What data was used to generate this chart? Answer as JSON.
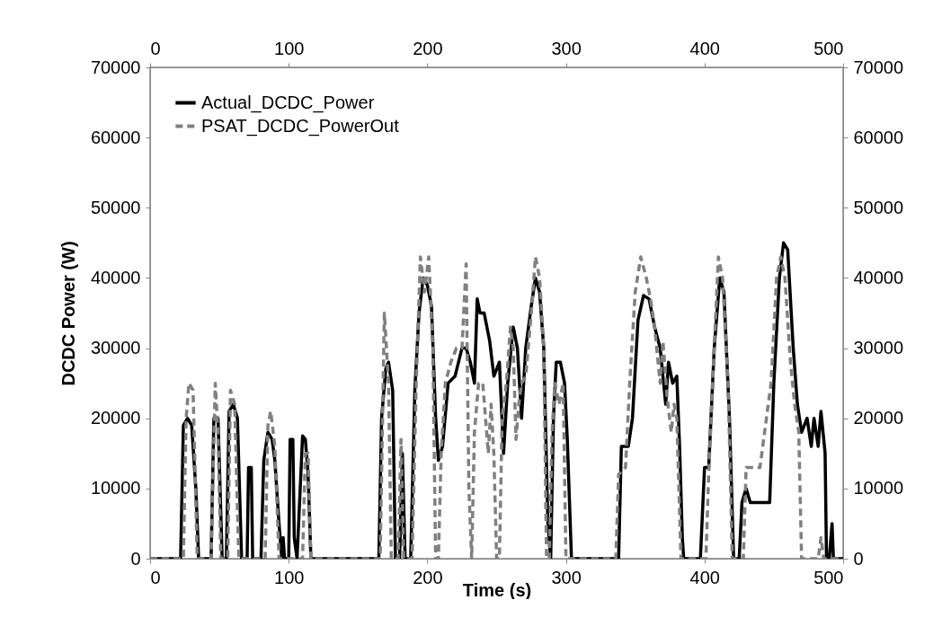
{
  "chart_data": {
    "type": "line",
    "xlabel": "Time (s)",
    "ylabel": "DCDC Power (W)",
    "xlim": [
      0,
      500
    ],
    "xticks": [
      0,
      100,
      200,
      300,
      400,
      500
    ],
    "x2lim": [
      0,
      500
    ],
    "x2ticks": [
      0,
      100,
      200,
      300,
      400,
      500
    ],
    "ylim": [
      0,
      70000
    ],
    "yticks": [
      0,
      10000,
      20000,
      30000,
      40000,
      50000,
      60000,
      70000
    ],
    "y2lim": [
      0,
      70000
    ],
    "y2ticks": [
      0,
      10000,
      20000,
      30000,
      40000,
      50000,
      60000,
      70000
    ],
    "grid": false,
    "legend": "top left",
    "marker": "none",
    "series": [
      {
        "name": "Actual_DCDC_Power",
        "color": "#000000",
        "line_style": "solid",
        "x": [
          0,
          22,
          24,
          27,
          30,
          33,
          35,
          44,
          46,
          49,
          52,
          55,
          57,
          60,
          63,
          66,
          70,
          71,
          73,
          74,
          80,
          82,
          85,
          88,
          90,
          93,
          95,
          96,
          97,
          100,
          101,
          103,
          104,
          106,
          110,
          112,
          114,
          116,
          165,
          167,
          170,
          172,
          175,
          177,
          180,
          182,
          184,
          188,
          191,
          194,
          197,
          200,
          203,
          206,
          208,
          211,
          215,
          220,
          225,
          228,
          231,
          234,
          236,
          238,
          241,
          245,
          248,
          252,
          255,
          258,
          262,
          265,
          268,
          271,
          275,
          278,
          281,
          284,
          287,
          289,
          291,
          293,
          296,
          299,
          301,
          304,
          338,
          340,
          345,
          348,
          352,
          356,
          360,
          364,
          368,
          372,
          374,
          377,
          380,
          382,
          384,
          385,
          397,
          400,
          403,
          407,
          411,
          414,
          418,
          421,
          425,
          427,
          430,
          433,
          440,
          447,
          450,
          454,
          457,
          460,
          464,
          467,
          470,
          474,
          477,
          479,
          482,
          484,
          487,
          488,
          490,
          492,
          493,
          500
        ],
        "values": [
          0,
          0,
          19000,
          20000,
          19000,
          10000,
          0,
          0,
          20000,
          20000,
          0,
          0,
          21000,
          22000,
          20000,
          0,
          0,
          13000,
          13000,
          0,
          0,
          14000,
          18000,
          17000,
          14000,
          5000,
          0,
          3000,
          0,
          0,
          17000,
          17000,
          3000,
          0,
          17500,
          17000,
          12000,
          0,
          0,
          20000,
          27000,
          28000,
          24000,
          0,
          0,
          15000,
          0,
          0,
          24000,
          35000,
          40000,
          39000,
          36000,
          20000,
          14000,
          16000,
          25000,
          26000,
          30000,
          30000,
          28000,
          25000,
          37000,
          35000,
          35000,
          31000,
          26000,
          28000,
          15000,
          25000,
          33000,
          30000,
          20000,
          30000,
          36000,
          40000,
          38000,
          30000,
          5000,
          0,
          20000,
          28000,
          28000,
          25000,
          17000,
          0,
          0,
          16000,
          16000,
          20000,
          34000,
          37500,
          37000,
          33000,
          30000,
          22000,
          28000,
          25000,
          26000,
          16000,
          3000,
          0,
          0,
          13000,
          13000,
          30000,
          40000,
          38000,
          20000,
          0,
          0,
          8000,
          10000,
          8000,
          8000,
          8000,
          25000,
          40000,
          45000,
          44000,
          30000,
          22000,
          18000,
          20000,
          16000,
          20000,
          16000,
          21000,
          15000,
          0,
          0,
          5000,
          0,
          0
        ]
      },
      {
        "name": "PSAT_DCDC_PowerOut",
        "color": "#808080",
        "line_style": "dashed",
        "x": [
          0,
          24,
          26,
          28,
          31,
          34,
          44,
          47,
          49,
          51,
          56,
          58,
          61,
          64,
          83,
          85,
          87,
          90,
          93,
          110,
          112,
          114,
          116,
          166,
          169,
          172,
          174,
          179,
          181,
          183,
          189,
          192,
          195,
          198,
          201,
          204,
          206,
          208,
          210,
          213,
          217,
          221,
          225,
          228,
          230,
          232,
          234,
          237,
          240,
          242,
          244,
          246,
          248,
          250,
          252,
          254,
          257,
          260,
          262,
          264,
          266,
          268,
          271,
          275,
          278,
          281,
          284,
          286,
          288,
          290,
          292,
          295,
          298,
          300,
          336,
          338,
          343,
          346,
          350,
          354,
          358,
          361,
          364,
          368,
          370,
          373,
          376,
          378,
          380,
          383,
          401,
          403,
          407,
          410,
          413,
          417,
          420,
          428,
          430,
          440,
          448,
          452,
          455,
          458,
          462,
          465,
          468,
          470,
          482,
          484,
          486,
          500
        ],
        "values": [
          0,
          0,
          20000,
          25000,
          24000,
          0,
          0,
          25000,
          18000,
          0,
          0,
          24000,
          22000,
          0,
          0,
          19000,
          21000,
          16000,
          0,
          0,
          15000,
          15000,
          0,
          0,
          35000,
          25000,
          0,
          0,
          17000,
          0,
          0,
          25000,
          43000,
          38000,
          43000,
          30000,
          0,
          0,
          15000,
          25000,
          28000,
          30000,
          30000,
          42000,
          10000,
          0,
          18000,
          25000,
          25000,
          20000,
          15000,
          22000,
          15000,
          0,
          0,
          20000,
          25000,
          33000,
          30000,
          17000,
          22000,
          25000,
          26000,
          35000,
          43000,
          40000,
          30000,
          0,
          0,
          18000,
          25000,
          22000,
          25000,
          0,
          0,
          12000,
          13000,
          25000,
          38000,
          43000,
          40000,
          37000,
          33000,
          25000,
          31000,
          23000,
          18000,
          22000,
          20000,
          0,
          0,
          12000,
          30000,
          43000,
          40000,
          25000,
          0,
          0,
          13000,
          13000,
          25000,
          40000,
          43000,
          40000,
          28000,
          22000,
          18000,
          0,
          0,
          3000,
          0,
          0
        ]
      }
    ]
  }
}
